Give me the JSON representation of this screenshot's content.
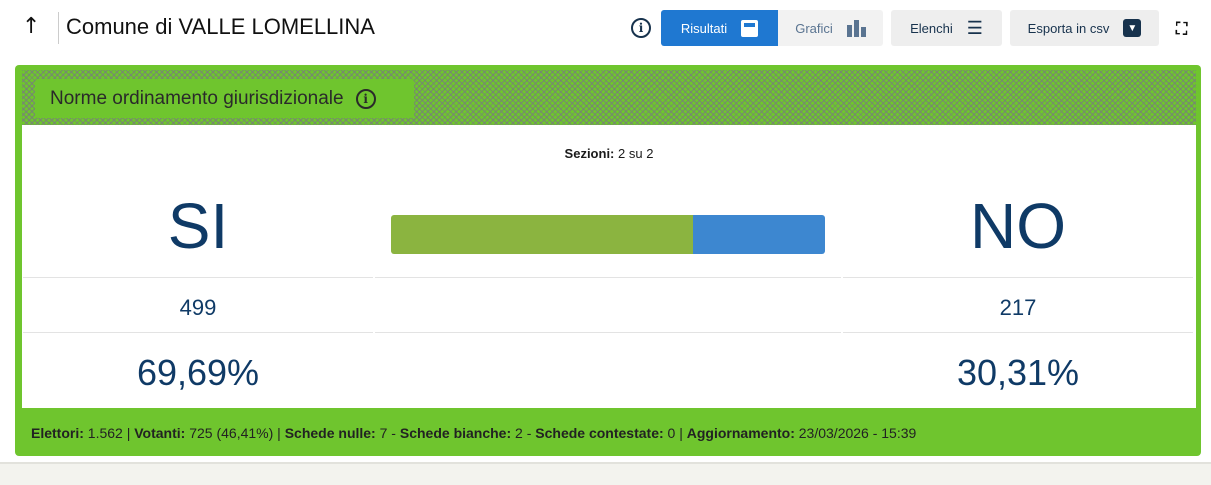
{
  "header": {
    "title": "Comune di VALLE LOMELLINA"
  },
  "toolbar": {
    "results": "Risultati",
    "charts": "Grafici",
    "lists": "Elenchi",
    "export": "Esporta in csv"
  },
  "card": {
    "title": "Norme ordinamento giurisdizionale",
    "sections_label": "Sezioni:",
    "sections_value": "2 su 2",
    "yes": {
      "label": "SI",
      "votes": "499",
      "percent": "69,69%"
    },
    "no": {
      "label": "NO",
      "votes": "217",
      "percent": "30,31%"
    },
    "bar": {
      "yes_percent": 69.69,
      "no_percent": 30.31,
      "yes_color": "#8bb440",
      "no_color": "#3d87d0"
    },
    "accent_color": "#6fc52e"
  },
  "footer": {
    "elettori_label": "Elettori:",
    "elettori": "1.562",
    "votanti_label": "Votanti:",
    "votanti": "725 (46,41%)",
    "nulle_label": "Schede nulle:",
    "nulle": "7",
    "bianche_label": "Schede bianche:",
    "bianche": "2",
    "contestate_label": "Schede contestate:",
    "contestate": "0",
    "agg_label": "Aggiornamento:",
    "agg": "23/03/2026 - 15:39"
  }
}
